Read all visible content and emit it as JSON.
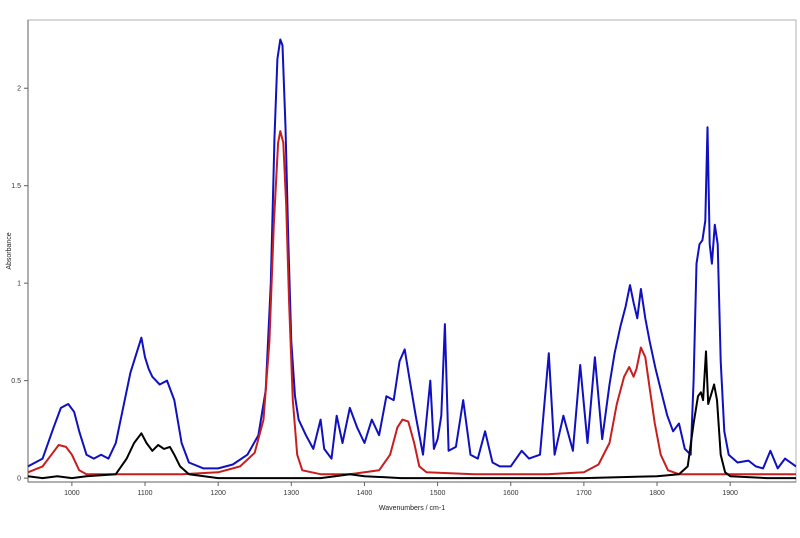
{
  "chart_data": {
    "type": "line",
    "title": "",
    "xlabel": "Wavenumbers / cm-1",
    "ylabel": "Absorbance",
    "xlim": [
      940,
      1990
    ],
    "ylim": [
      -0.02,
      2.35
    ],
    "x_ticks": [
      1000,
      1100,
      1200,
      1300,
      1400,
      1500,
      1600,
      1700,
      1800,
      1900
    ],
    "x_tick_labels": [
      "1000",
      "1100",
      "1200",
      "1300",
      "1400",
      "1500",
      "1600",
      "1700",
      "1800",
      "1900"
    ],
    "y_ticks": [
      0,
      0.5,
      1,
      1.5,
      2
    ],
    "y_tick_labels": [
      "0",
      "0.5",
      "1",
      "1.5",
      "2"
    ],
    "grid": false,
    "legend": false,
    "series": [
      {
        "color": "#1010c0",
        "points": [
          [
            940,
            0.06
          ],
          [
            960,
            0.1
          ],
          [
            975,
            0.26
          ],
          [
            985,
            0.36
          ],
          [
            995,
            0.38
          ],
          [
            1003,
            0.34
          ],
          [
            1010,
            0.24
          ],
          [
            1020,
            0.12
          ],
          [
            1030,
            0.1
          ],
          [
            1040,
            0.12
          ],
          [
            1050,
            0.1
          ],
          [
            1060,
            0.18
          ],
          [
            1070,
            0.36
          ],
          [
            1080,
            0.54
          ],
          [
            1090,
            0.66
          ],
          [
            1095,
            0.72
          ],
          [
            1100,
            0.62
          ],
          [
            1105,
            0.56
          ],
          [
            1110,
            0.52
          ],
          [
            1120,
            0.48
          ],
          [
            1130,
            0.5
          ],
          [
            1140,
            0.4
          ],
          [
            1150,
            0.18
          ],
          [
            1160,
            0.08
          ],
          [
            1180,
            0.05
          ],
          [
            1200,
            0.05
          ],
          [
            1220,
            0.07
          ],
          [
            1240,
            0.12
          ],
          [
            1255,
            0.22
          ],
          [
            1265,
            0.45
          ],
          [
            1272,
            1.0
          ],
          [
            1277,
            1.75
          ],
          [
            1281,
            2.15
          ],
          [
            1285,
            2.25
          ],
          [
            1288,
            2.22
          ],
          [
            1292,
            1.8
          ],
          [
            1296,
            1.2
          ],
          [
            1300,
            0.7
          ],
          [
            1305,
            0.42
          ],
          [
            1310,
            0.3
          ],
          [
            1320,
            0.22
          ],
          [
            1330,
            0.15
          ],
          [
            1340,
            0.3
          ],
          [
            1345,
            0.15
          ],
          [
            1355,
            0.1
          ],
          [
            1362,
            0.32
          ],
          [
            1370,
            0.18
          ],
          [
            1380,
            0.36
          ],
          [
            1390,
            0.26
          ],
          [
            1400,
            0.18
          ],
          [
            1410,
            0.3
          ],
          [
            1420,
            0.22
          ],
          [
            1430,
            0.42
          ],
          [
            1440,
            0.4
          ],
          [
            1448,
            0.6
          ],
          [
            1455,
            0.66
          ],
          [
            1462,
            0.5
          ],
          [
            1470,
            0.32
          ],
          [
            1480,
            0.12
          ],
          [
            1490,
            0.5
          ],
          [
            1495,
            0.15
          ],
          [
            1500,
            0.2
          ],
          [
            1505,
            0.32
          ],
          [
            1510,
            0.79
          ],
          [
            1515,
            0.14
          ],
          [
            1525,
            0.16
          ],
          [
            1535,
            0.4
          ],
          [
            1545,
            0.12
          ],
          [
            1555,
            0.1
          ],
          [
            1565,
            0.24
          ],
          [
            1575,
            0.08
          ],
          [
            1585,
            0.06
          ],
          [
            1600,
            0.06
          ],
          [
            1615,
            0.14
          ],
          [
            1625,
            0.1
          ],
          [
            1640,
            0.12
          ],
          [
            1652,
            0.64
          ],
          [
            1660,
            0.12
          ],
          [
            1672,
            0.32
          ],
          [
            1685,
            0.14
          ],
          [
            1695,
            0.58
          ],
          [
            1705,
            0.18
          ],
          [
            1715,
            0.62
          ],
          [
            1725,
            0.2
          ],
          [
            1735,
            0.48
          ],
          [
            1742,
            0.64
          ],
          [
            1750,
            0.78
          ],
          [
            1757,
            0.88
          ],
          [
            1763,
            0.99
          ],
          [
            1768,
            0.9
          ],
          [
            1773,
            0.82
          ],
          [
            1778,
            0.97
          ],
          [
            1784,
            0.82
          ],
          [
            1790,
            0.7
          ],
          [
            1798,
            0.56
          ],
          [
            1806,
            0.44
          ],
          [
            1814,
            0.32
          ],
          [
            1822,
            0.24
          ],
          [
            1830,
            0.28
          ],
          [
            1838,
            0.15
          ],
          [
            1846,
            0.12
          ],
          [
            1850,
            0.5
          ],
          [
            1854,
            1.1
          ],
          [
            1858,
            1.2
          ],
          [
            1862,
            1.22
          ],
          [
            1866,
            1.32
          ],
          [
            1869,
            1.8
          ],
          [
            1872,
            1.2
          ],
          [
            1875,
            1.1
          ],
          [
            1879,
            1.3
          ],
          [
            1883,
            1.2
          ],
          [
            1887,
            0.6
          ],
          [
            1892,
            0.24
          ],
          [
            1898,
            0.12
          ],
          [
            1910,
            0.08
          ],
          [
            1925,
            0.09
          ],
          [
            1935,
            0.06
          ],
          [
            1945,
            0.05
          ],
          [
            1955,
            0.14
          ],
          [
            1965,
            0.05
          ],
          [
            1975,
            0.1
          ],
          [
            1990,
            0.06
          ]
        ]
      },
      {
        "color": "#c81e1e",
        "points": [
          [
            940,
            0.03
          ],
          [
            960,
            0.06
          ],
          [
            972,
            0.12
          ],
          [
            982,
            0.17
          ],
          [
            992,
            0.16
          ],
          [
            1000,
            0.12
          ],
          [
            1010,
            0.04
          ],
          [
            1020,
            0.02
          ],
          [
            1050,
            0.02
          ],
          [
            1100,
            0.02
          ],
          [
            1150,
            0.02
          ],
          [
            1200,
            0.03
          ],
          [
            1230,
            0.06
          ],
          [
            1250,
            0.13
          ],
          [
            1262,
            0.3
          ],
          [
            1270,
            0.7
          ],
          [
            1276,
            1.3
          ],
          [
            1282,
            1.72
          ],
          [
            1285,
            1.78
          ],
          [
            1289,
            1.72
          ],
          [
            1293,
            1.4
          ],
          [
            1297,
            0.9
          ],
          [
            1302,
            0.4
          ],
          [
            1308,
            0.12
          ],
          [
            1315,
            0.04
          ],
          [
            1340,
            0.02
          ],
          [
            1380,
            0.02
          ],
          [
            1420,
            0.04
          ],
          [
            1435,
            0.12
          ],
          [
            1445,
            0.26
          ],
          [
            1452,
            0.3
          ],
          [
            1460,
            0.29
          ],
          [
            1468,
            0.18
          ],
          [
            1475,
            0.06
          ],
          [
            1485,
            0.03
          ],
          [
            1550,
            0.02
          ],
          [
            1650,
            0.02
          ],
          [
            1700,
            0.03
          ],
          [
            1720,
            0.07
          ],
          [
            1735,
            0.18
          ],
          [
            1745,
            0.38
          ],
          [
            1755,
            0.52
          ],
          [
            1762,
            0.57
          ],
          [
            1768,
            0.52
          ],
          [
            1772,
            0.56
          ],
          [
            1778,
            0.67
          ],
          [
            1784,
            0.62
          ],
          [
            1790,
            0.46
          ],
          [
            1797,
            0.28
          ],
          [
            1805,
            0.12
          ],
          [
            1815,
            0.04
          ],
          [
            1830,
            0.02
          ],
          [
            1990,
            0.02
          ]
        ]
      },
      {
        "color": "#000000",
        "points": [
          [
            940,
            0.01
          ],
          [
            960,
            0
          ],
          [
            980,
            0.01
          ],
          [
            1000,
            0
          ],
          [
            1020,
            0.01
          ],
          [
            1060,
            0.02
          ],
          [
            1075,
            0.1
          ],
          [
            1085,
            0.18
          ],
          [
            1095,
            0.23
          ],
          [
            1102,
            0.18
          ],
          [
            1110,
            0.14
          ],
          [
            1118,
            0.17
          ],
          [
            1126,
            0.15
          ],
          [
            1134,
            0.16
          ],
          [
            1140,
            0.12
          ],
          [
            1148,
            0.06
          ],
          [
            1160,
            0.02
          ],
          [
            1200,
            0
          ],
          [
            1300,
            0
          ],
          [
            1340,
            0
          ],
          [
            1360,
            0.01
          ],
          [
            1380,
            0.02
          ],
          [
            1400,
            0.01
          ],
          [
            1450,
            0
          ],
          [
            1500,
            0
          ],
          [
            1600,
            0
          ],
          [
            1700,
            0
          ],
          [
            1800,
            0.01
          ],
          [
            1830,
            0.02
          ],
          [
            1842,
            0.06
          ],
          [
            1850,
            0.28
          ],
          [
            1856,
            0.42
          ],
          [
            1860,
            0.44
          ],
          [
            1863,
            0.4
          ],
          [
            1867,
            0.65
          ],
          [
            1870,
            0.38
          ],
          [
            1874,
            0.43
          ],
          [
            1878,
            0.48
          ],
          [
            1882,
            0.4
          ],
          [
            1887,
            0.12
          ],
          [
            1893,
            0.03
          ],
          [
            1900,
            0.01
          ],
          [
            1950,
            0
          ],
          [
            1990,
            0
          ]
        ]
      }
    ]
  }
}
